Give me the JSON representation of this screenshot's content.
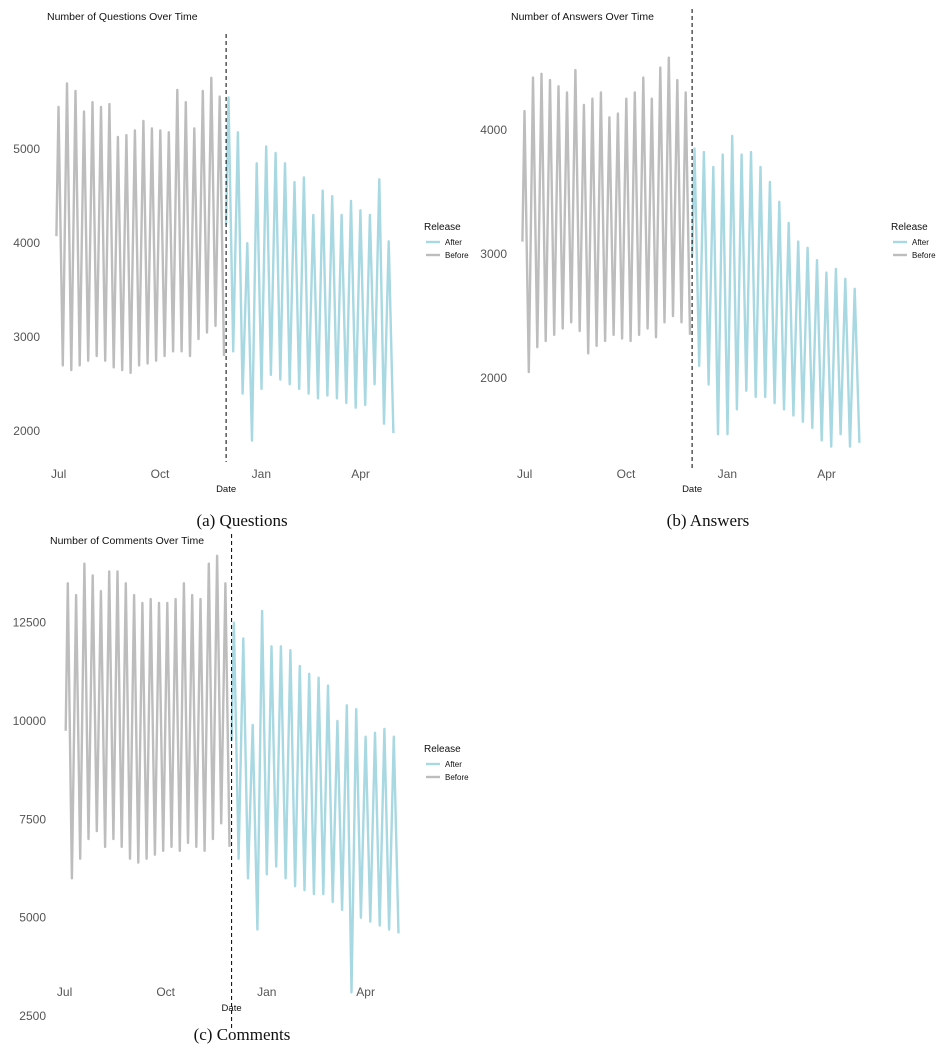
{
  "colors": {
    "before": "#bdbdbd",
    "after": "#a8d8e2",
    "release_line": "#000000"
  },
  "chart_data": [
    {
      "type": "line",
      "title": "Number of Questions Over Time",
      "xlabel": "Date",
      "ylabel": "",
      "x_range": [
        "2022-06-25",
        "2023-05-05"
      ],
      "x_ticks": [
        {
          "date": "2022-07-01",
          "label": "Jul"
        },
        {
          "date": "2022-10-01",
          "label": "Oct"
        },
        {
          "date": "2023-01-01",
          "label": "Jan"
        },
        {
          "date": "2023-04-01",
          "label": "Apr"
        }
      ],
      "ylim": [
        1800,
        5800
      ],
      "y_ticks": [
        2000,
        3000,
        4000,
        5000
      ],
      "release_date": "2022-11-30",
      "legend": {
        "title": "Release",
        "position": "right",
        "entries": [
          "After",
          "Before"
        ]
      },
      "series": [
        {
          "name": "Before",
          "start": "2022-06-29",
          "end": "2022-11-30",
          "highs": [
            5450,
            5700,
            5620,
            5400,
            5500,
            5450,
            5480,
            5130,
            5150,
            5200,
            5300,
            5220,
            5200,
            5180,
            5630,
            5500,
            5220,
            5620,
            5760,
            5560
          ],
          "lows": [
            2700,
            2650,
            2700,
            2750,
            2800,
            2750,
            2680,
            2650,
            2620,
            2700,
            2720,
            2750,
            2800,
            2850,
            2850,
            2800,
            2980,
            3050,
            3120,
            2800
          ]
        },
        {
          "name": "After",
          "start": "2022-11-30",
          "end": "2023-05-03",
          "highs": [
            5550,
            5180,
            4000,
            4850,
            5030,
            4960,
            4850,
            4650,
            4700,
            4300,
            4560,
            4500,
            4300,
            4450,
            4350,
            4300,
            4680,
            4020
          ],
          "lows": [
            2850,
            2400,
            1900,
            2450,
            2600,
            2550,
            2500,
            2450,
            2400,
            2350,
            2380,
            2350,
            2300,
            2250,
            2280,
            2500,
            2080,
            1980
          ]
        }
      ]
    },
    {
      "type": "line",
      "title": "Number of Answers Over Time",
      "xlabel": "Date",
      "ylabel": "",
      "x_range": [
        "2022-06-25",
        "2023-05-05"
      ],
      "x_ticks": [
        {
          "date": "2022-07-01",
          "label": "Jul"
        },
        {
          "date": "2022-10-01",
          "label": "Oct"
        },
        {
          "date": "2023-01-01",
          "label": "Jan"
        },
        {
          "date": "2023-04-01",
          "label": "Apr"
        }
      ],
      "ylim": [
        1350,
        4650
      ],
      "y_ticks": [
        2000,
        3000,
        4000
      ],
      "release_date": "2022-11-30",
      "legend": {
        "title": "Release",
        "position": "right",
        "entries": [
          "After",
          "Before"
        ]
      },
      "series": [
        {
          "name": "Before",
          "start": "2022-06-29",
          "end": "2022-11-30",
          "highs": [
            4150,
            4420,
            4450,
            4400,
            4350,
            4300,
            4480,
            4200,
            4250,
            4300,
            4100,
            4130,
            4250,
            4300,
            4420,
            4250,
            4500,
            4580,
            4400,
            4300
          ],
          "lows": [
            2050,
            2250,
            2300,
            2350,
            2400,
            2450,
            2380,
            2200,
            2260,
            2300,
            2350,
            2320,
            2300,
            2350,
            2400,
            2330,
            2450,
            2500,
            2450,
            2350
          ]
        },
        {
          "name": "After",
          "start": "2022-11-30",
          "end": "2023-05-03",
          "highs": [
            3850,
            3820,
            3700,
            3800,
            3950,
            3800,
            3820,
            3700,
            3580,
            3420,
            3250,
            3100,
            3050,
            2950,
            2850,
            2880,
            2800,
            2720
          ],
          "lows": [
            2100,
            1950,
            1550,
            1550,
            1750,
            1900,
            1850,
            1850,
            1800,
            1750,
            1700,
            1650,
            1600,
            1500,
            1450,
            1550,
            1450,
            1480
          ]
        }
      ]
    },
    {
      "type": "line",
      "title": "Number of Comments Over Time",
      "xlabel": "Date",
      "ylabel": "",
      "x_range": [
        "2022-06-25",
        "2023-05-05"
      ],
      "x_ticks": [
        {
          "date": "2022-07-01",
          "label": "Jul"
        },
        {
          "date": "2022-10-01",
          "label": "Oct"
        },
        {
          "date": "2023-01-01",
          "label": "Jan"
        },
        {
          "date": "2023-04-01",
          "label": "Apr"
        }
      ],
      "ylim": [
        2500,
        14500
      ],
      "y_ticks": [
        2500,
        5000,
        7500,
        10000,
        12500
      ],
      "release_date": "2022-11-30",
      "legend": {
        "title": "Release",
        "position": "right",
        "entries": [
          "After",
          "Before"
        ]
      },
      "series": [
        {
          "name": "Before",
          "start": "2022-07-02",
          "end": "2022-11-30",
          "highs": [
            13500,
            13200,
            14000,
            13700,
            13300,
            13800,
            13800,
            13500,
            13200,
            13000,
            13100,
            13000,
            13000,
            13100,
            13500,
            13200,
            13100,
            14000,
            14200,
            13500
          ],
          "lows": [
            6000,
            6500,
            7000,
            7200,
            6800,
            7000,
            6800,
            6500,
            6400,
            6500,
            6600,
            6700,
            6800,
            6700,
            6900,
            6800,
            6700,
            7000,
            7400,
            6800
          ]
        },
        {
          "name": "After",
          "start": "2022-11-30",
          "end": "2023-05-03",
          "highs": [
            12500,
            12100,
            9900,
            12800,
            11900,
            11900,
            11800,
            11400,
            11200,
            11100,
            10900,
            10000,
            10400,
            10300,
            9600,
            9700,
            9800,
            9600
          ],
          "lows": [
            6500,
            6000,
            4700,
            6100,
            6300,
            6000,
            5800,
            5700,
            5600,
            5600,
            5400,
            5200,
            3100,
            5000,
            4900,
            4800,
            4700,
            4600
          ]
        }
      ]
    }
  ],
  "captions": [
    "(a) Questions",
    "(b) Answers",
    "(c) Comments"
  ]
}
